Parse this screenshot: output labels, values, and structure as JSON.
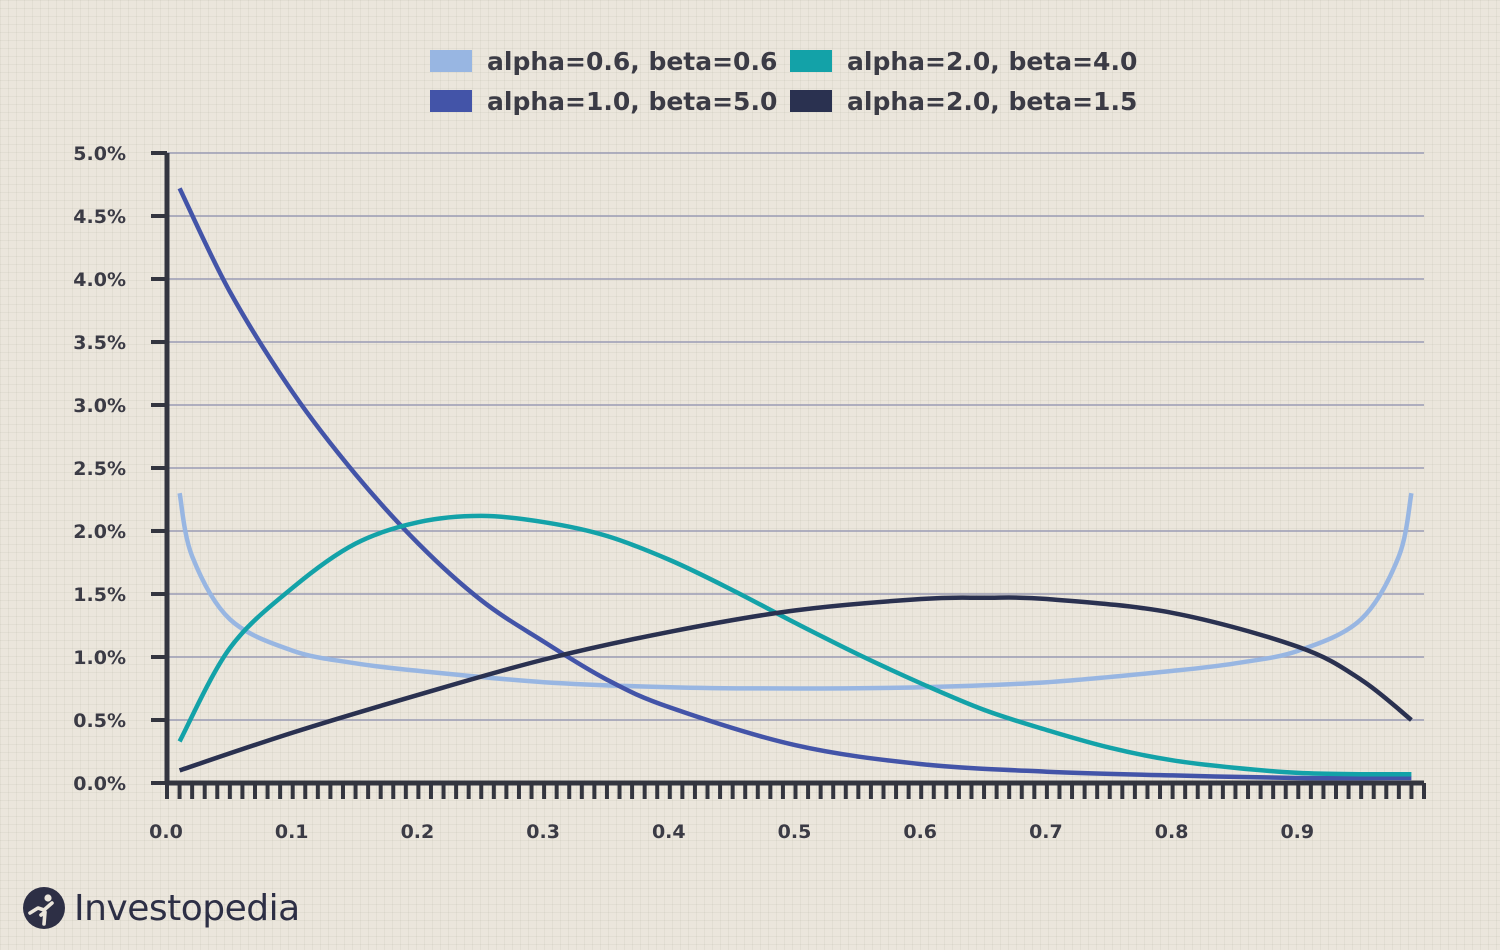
{
  "chart_data": {
    "type": "line",
    "title": "",
    "xlabel": "",
    "ylabel": "",
    "xlim": [
      0.0,
      1.0
    ],
    "ylim": [
      0.0,
      5.0
    ],
    "xticks": [
      "0.0",
      "0.1",
      "0.2",
      "0.3",
      "0.4",
      "0.5",
      "0.6",
      "0.7",
      "0.8",
      "0.9"
    ],
    "yticks": [
      "0.0%",
      "0.5%",
      "1.0%",
      "1.5%",
      "2.0%",
      "2.5%",
      "3.0%",
      "3.5%",
      "4.0%",
      "4.5%",
      "5.0%"
    ],
    "grid": true,
    "legend_position": "top-center",
    "series": [
      {
        "name": "alpha=0.6, beta=0.6",
        "color": "#98b6e2",
        "x": [
          0.01,
          0.02,
          0.05,
          0.1,
          0.15,
          0.2,
          0.3,
          0.4,
          0.5,
          0.6,
          0.7,
          0.8,
          0.85,
          0.9,
          0.95,
          0.98,
          0.99
        ],
        "y": [
          2.3,
          1.8,
          1.3,
          1.05,
          0.95,
          0.89,
          0.8,
          0.76,
          0.75,
          0.76,
          0.8,
          0.89,
          0.95,
          1.05,
          1.3,
          1.8,
          2.3
        ]
      },
      {
        "name": "alpha=1.0, beta=5.0",
        "color": "#4354a8",
        "x": [
          0.01,
          0.05,
          0.1,
          0.15,
          0.2,
          0.25,
          0.3,
          0.35,
          0.4,
          0.5,
          0.6,
          0.7,
          0.8,
          0.9,
          0.99
        ],
        "y": [
          4.72,
          3.9,
          3.1,
          2.45,
          1.9,
          1.45,
          1.12,
          0.82,
          0.6,
          0.3,
          0.15,
          0.09,
          0.06,
          0.04,
          0.04
        ]
      },
      {
        "name": "alpha=2.0, beta=4.0",
        "color": "#13a2a8",
        "x": [
          0.01,
          0.05,
          0.1,
          0.15,
          0.2,
          0.25,
          0.3,
          0.35,
          0.4,
          0.45,
          0.5,
          0.55,
          0.6,
          0.65,
          0.7,
          0.75,
          0.8,
          0.85,
          0.9,
          0.95,
          0.99
        ],
        "y": [
          0.33,
          1.07,
          1.55,
          1.9,
          2.07,
          2.12,
          2.07,
          1.96,
          1.77,
          1.53,
          1.27,
          1.02,
          0.79,
          0.58,
          0.42,
          0.28,
          0.18,
          0.12,
          0.08,
          0.07,
          0.07
        ]
      },
      {
        "name": "alpha=2.0, beta=1.5",
        "color": "#2a3150",
        "x": [
          0.01,
          0.1,
          0.2,
          0.3,
          0.4,
          0.5,
          0.6,
          0.65,
          0.7,
          0.8,
          0.9,
          0.95,
          0.99
        ],
        "y": [
          0.1,
          0.4,
          0.7,
          0.98,
          1.2,
          1.37,
          1.46,
          1.47,
          1.46,
          1.35,
          1.08,
          0.82,
          0.5
        ]
      }
    ]
  },
  "brand": {
    "name": "Investopedia"
  }
}
